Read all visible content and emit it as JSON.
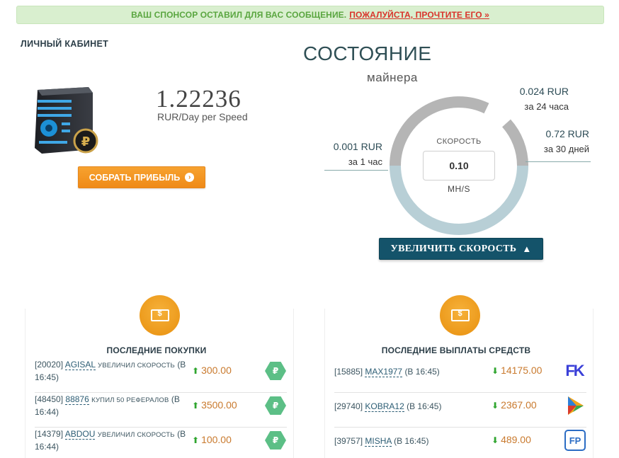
{
  "notice": {
    "text": "ВАШ СПОНСОР ОСТАВИЛ ДЛЯ ВАС СООБЩЕНИЕ.",
    "link": "ПОЖАЛУЙСТА, ПРОЧТИТЕ ЕГО »"
  },
  "cabinet": {
    "title": "ЛИЧНЫЙ КАБИНЕТ",
    "rate_value": "1.22236",
    "rate_unit": "RUR/Day per Speed",
    "collect_label": "СОБРАТЬ ПРИБЫЛЬ",
    "collect_icon": "chevron-right-circle-icon"
  },
  "miner": {
    "title": "СОСТОЯНИЕ",
    "subtitle": "майнера",
    "speed_label": "СКОРОСТЬ",
    "speed_value": "0.10",
    "speed_unit": "MH/S",
    "hour_value": "0.001 RUR",
    "hour_label": "за 1 час",
    "day_value": "0.024 RUR",
    "day_label": "за 24 часа",
    "month_value": "0.72 RUR",
    "month_label": "за 30 дней",
    "increase_label": "УВЕЛИЧИТЬ СКОРОСТЬ",
    "colors": {
      "ring_top": "#b5b5b5",
      "ring_bottom": "#b8cfd6",
      "button": "#14536a"
    }
  },
  "purchases": {
    "title": "ПОСЛЕДНИЕ ПОКУПКИ",
    "rows": [
      {
        "id": "[20020]",
        "user": "AGISAL",
        "action": "УВЕЛИЧИЛ СКОРОСТЬ",
        "time": "(В 16:45)",
        "amount": "300.00",
        "icon": "ruble-hex-icon"
      },
      {
        "id": "[48450]",
        "user": "88876",
        "action": "КУПИЛ 50 РЕФЕРАЛОВ",
        "time": "(В 16:44)",
        "amount": "3500.00",
        "icon": "ruble-hex-icon"
      },
      {
        "id": "[14379]",
        "user": "ABDOU",
        "action": "УВЕЛИЧИЛ СКОРОСТЬ",
        "time": "(В 16:44)",
        "amount": "100.00",
        "icon": "ruble-hex-icon"
      }
    ]
  },
  "payouts": {
    "title": "ПОСЛЕДНИЕ ВЫПЛАТЫ СРЕДСТВ",
    "rows": [
      {
        "id": "[15885]",
        "user": "MAX1977",
        "time": "(В 16:45)",
        "amount": "14175.00",
        "icon": "freekassa-icon",
        "logo": "FK"
      },
      {
        "id": "[29740]",
        "user": "KOBRA12",
        "time": "(В 16:45)",
        "amount": "2367.00",
        "icon": "payeer-play-icon",
        "logo": ""
      },
      {
        "id": "[39757]",
        "user": "MISHA",
        "time": "(В 16:45)",
        "amount": "489.00",
        "icon": "faucetpay-icon",
        "logo": "FP"
      }
    ]
  }
}
